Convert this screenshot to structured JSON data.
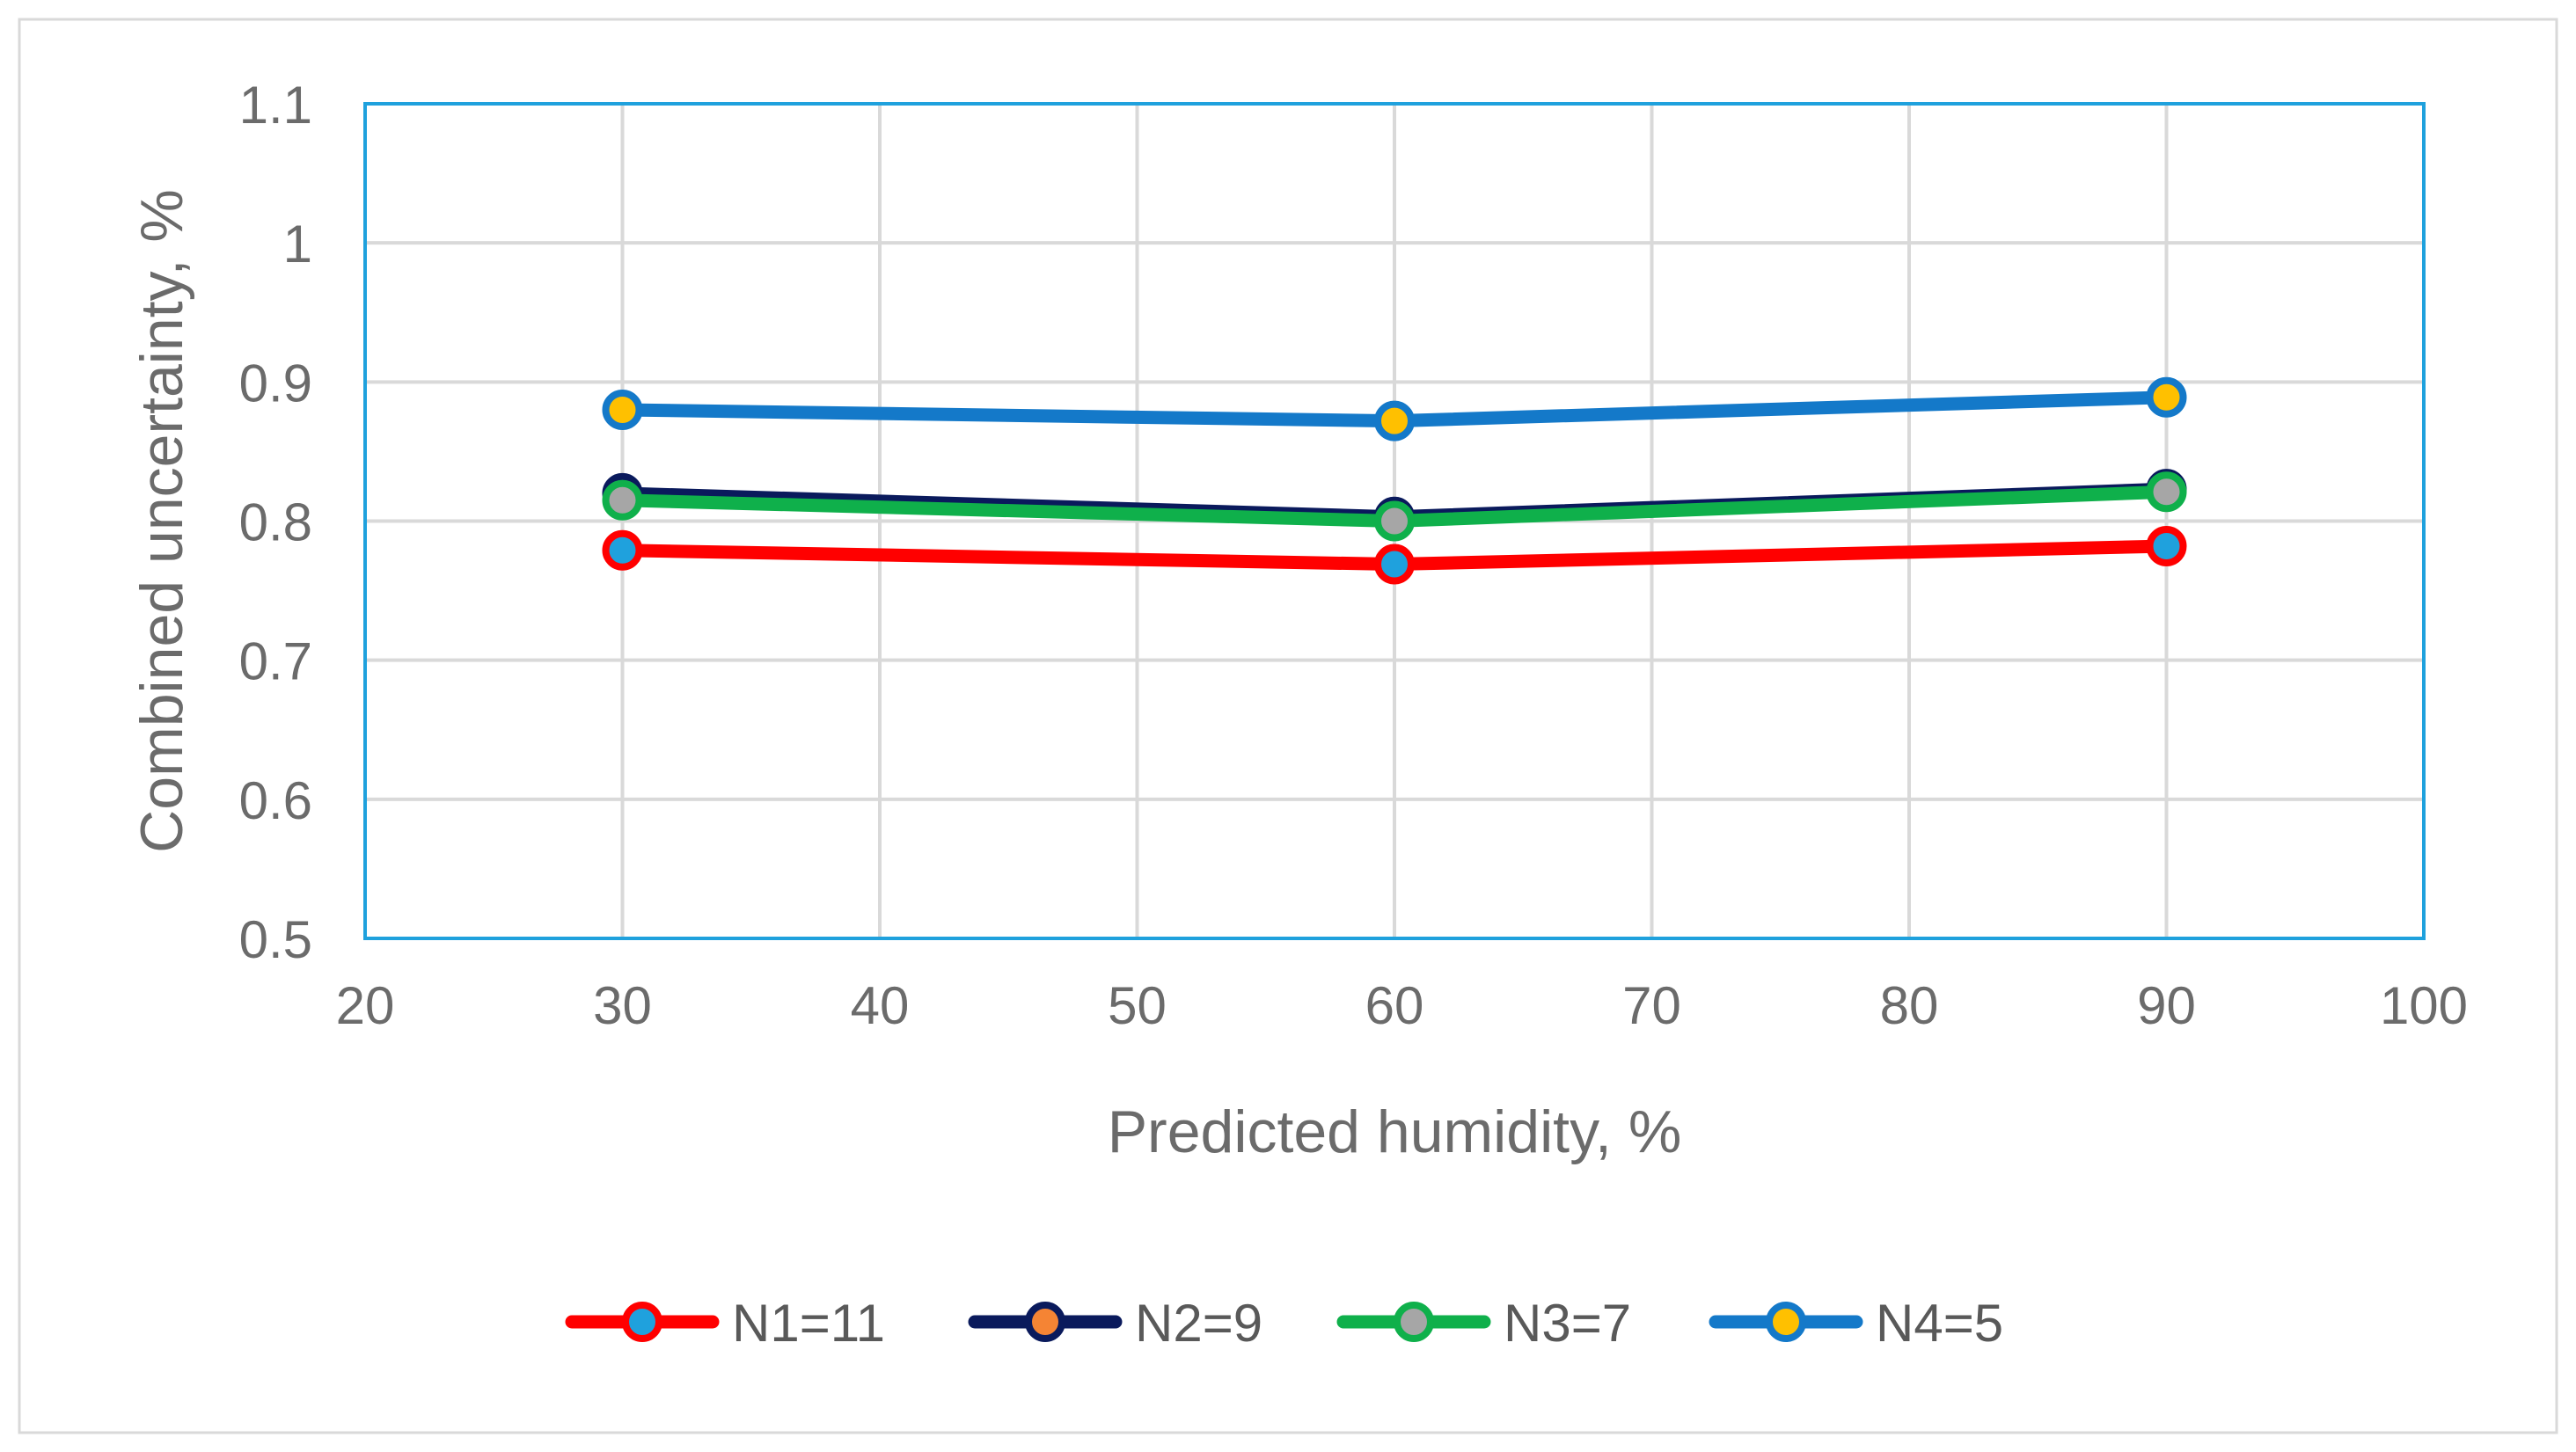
{
  "chart_data": {
    "type": "line",
    "xlabel": "Predicted humidity, %",
    "ylabel": "Combined uncertainty, %",
    "xlim": [
      20,
      100
    ],
    "ylim": [
      0.5,
      1.1
    ],
    "x_ticks": [
      "20",
      "30",
      "40",
      "50",
      "60",
      "70",
      "80",
      "90",
      "100"
    ],
    "y_ticks": [
      "0.5",
      "0.6",
      "0.7",
      "0.8",
      "0.9",
      "1",
      "1.1"
    ],
    "grid": true,
    "legend_position": "bottom",
    "x": [
      30,
      60,
      90
    ],
    "series": [
      {
        "name": "N1=11",
        "values": [
          0.779,
          0.769,
          0.782
        ],
        "line_color": "#ff0000",
        "marker_fill": "#1fa1dd"
      },
      {
        "name": "N2=9",
        "values": [
          0.82,
          0.803,
          0.823
        ],
        "line_color": "#0a1a5c",
        "marker_fill": "#f58434"
      },
      {
        "name": "N3=7",
        "values": [
          0.815,
          0.8,
          0.821
        ],
        "line_color": "#0fb04b",
        "marker_fill": "#a6a6a6"
      },
      {
        "name": "N4=5",
        "values": [
          0.88,
          0.872,
          0.889
        ],
        "line_color": "#1479c9",
        "marker_fill": "#ffc000"
      }
    ],
    "plot_border_color": "#1fa1dd",
    "grid_color": "#d9d9d9"
  }
}
